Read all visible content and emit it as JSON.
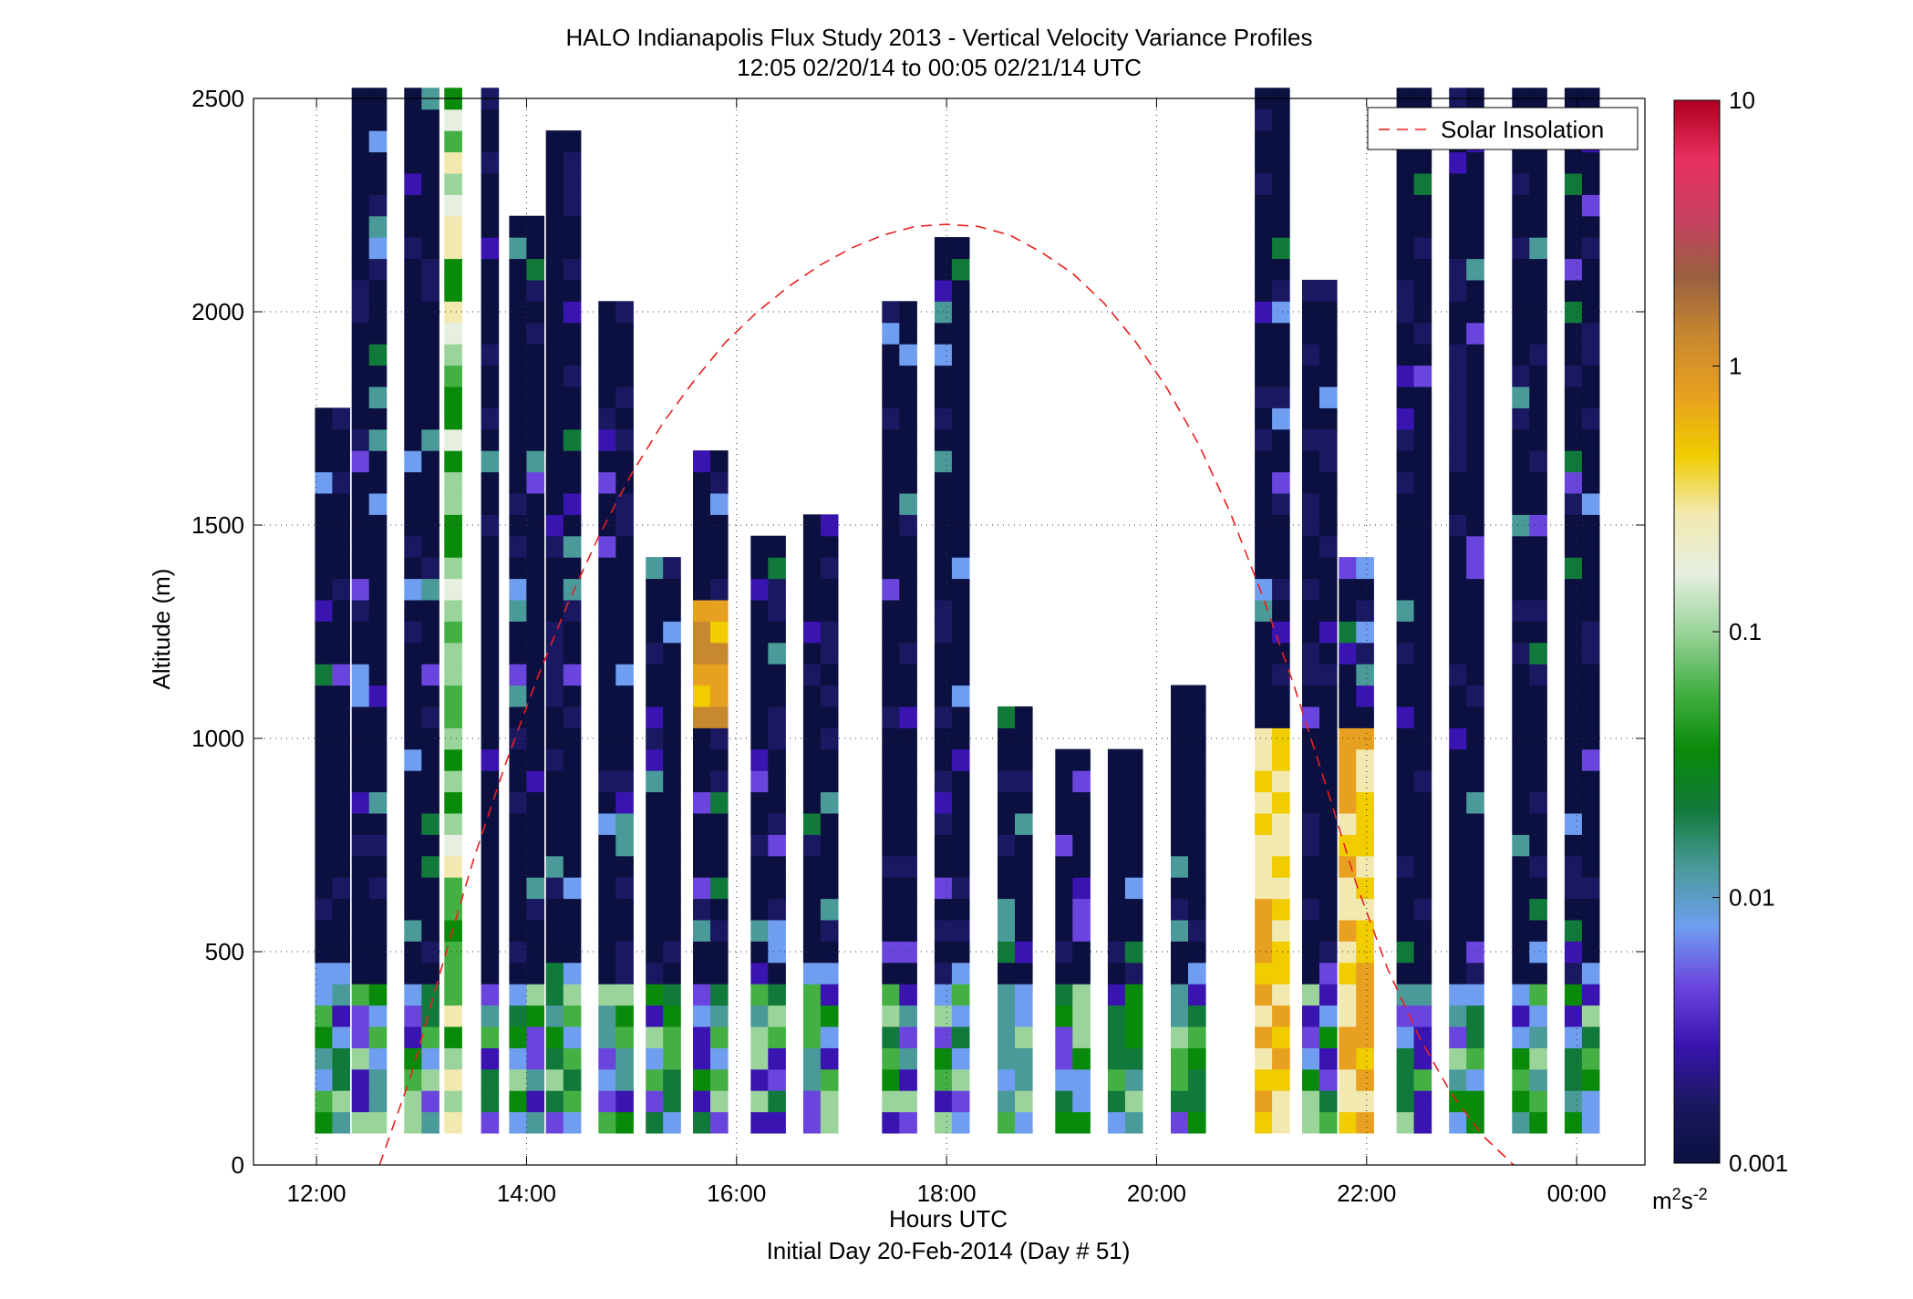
{
  "chart_data": {
    "type": "heatmap",
    "title": "HALO Indianapolis Flux Study 2013 - Vertical Velocity Variance Profiles",
    "subtitle": "12:05 02/20/14 to 00:05 02/21/14  UTC",
    "xlabel": "Hours UTC",
    "xlabel2": "Initial Day 20-Feb-2014 (Day # 51)",
    "ylabel": "Altitude (m)",
    "x_ticks": [
      {
        "value": 12,
        "label": "12:00"
      },
      {
        "value": 14,
        "label": "14:00"
      },
      {
        "value": 16,
        "label": "16:00"
      },
      {
        "value": 18,
        "label": "18:00"
      },
      {
        "value": 20,
        "label": "20:00"
      },
      {
        "value": 22,
        "label": "22:00"
      },
      {
        "value": 24,
        "label": "00:00"
      }
    ],
    "y_ticks": [
      {
        "value": 0,
        "label": "0"
      },
      {
        "value": 500,
        "label": "500"
      },
      {
        "value": 1000,
        "label": "1000"
      },
      {
        "value": 1500,
        "label": "1500"
      },
      {
        "value": 2000,
        "label": "2000"
      },
      {
        "value": 2500,
        "label": "2500"
      }
    ],
    "xlim": [
      11.4,
      24.65
    ],
    "ylim": [
      0,
      2500
    ],
    "grid": true,
    "legend": {
      "label": "Solar Insolation",
      "placement": "top-right"
    },
    "colorbar": {
      "scale": "log",
      "range": [
        0.001,
        10
      ],
      "ticks": [
        {
          "value": 10,
          "label": "10"
        },
        {
          "value": 1,
          "label": "1"
        },
        {
          "value": 0.1,
          "label": "0.1"
        },
        {
          "value": 0.01,
          "label": "0.01"
        },
        {
          "value": 0.001,
          "label": "0.001"
        }
      ],
      "unit_base": "m",
      "unit_exp1": "2",
      "unit_mid": "s",
      "unit_exp2": "-2",
      "colors": [
        "#0b1040",
        "#1a1860",
        "#3a14b0",
        "#6a45dd",
        "#6f9ef0",
        "#4a9a9a",
        "#117a3a",
        "#0a8a0a",
        "#44b044",
        "#9bd49b",
        "#e6efe0",
        "#f2e9b0",
        "#f0cc00",
        "#e8a020",
        "#c88830",
        "#9a6040",
        "#c64060",
        "#e83060",
        "#b00020"
      ]
    },
    "solar_insolation": {
      "x": [
        12.6,
        12.9,
        13.2,
        13.5,
        13.8,
        14.1,
        14.4,
        14.7,
        15.0,
        15.3,
        15.6,
        15.9,
        16.2,
        16.5,
        16.8,
        17.1,
        17.4,
        17.7,
        18.0,
        18.3,
        18.6,
        18.9,
        19.2,
        19.5,
        19.8,
        20.1,
        20.4,
        20.7,
        21.0,
        21.3,
        21.6,
        21.9,
        22.2,
        22.5,
        22.8,
        23.1,
        23.4
      ],
      "y": [
        0,
        210,
        470,
        720,
        940,
        1140,
        1320,
        1480,
        1620,
        1740,
        1840,
        1930,
        2000,
        2060,
        2110,
        2150,
        2180,
        2200,
        2205,
        2200,
        2180,
        2140,
        2090,
        2020,
        1930,
        1820,
        1690,
        1530,
        1340,
        1130,
        900,
        660,
        460,
        300,
        170,
        70,
        0
      ]
    },
    "variance_columns": [
      {
        "t": 12.15,
        "top": 1750
      },
      {
        "t": 12.5,
        "top": 2500
      },
      {
        "t": 13.0,
        "top": 2500
      },
      {
        "t": 13.3,
        "top": 2500
      },
      {
        "t": 13.65,
        "top": 2500
      },
      {
        "t": 14.0,
        "top": 2200
      },
      {
        "t": 14.35,
        "top": 2400
      },
      {
        "t": 14.85,
        "top": 2000
      },
      {
        "t": 15.3,
        "top": 1400
      },
      {
        "t": 15.75,
        "top": 1650
      },
      {
        "t": 16.3,
        "top": 1450
      },
      {
        "t": 16.8,
        "top": 1480
      },
      {
        "t": 17.55,
        "top": 2000
      },
      {
        "t": 18.05,
        "top": 2150
      },
      {
        "t": 18.65,
        "top": 1050
      },
      {
        "t": 19.2,
        "top": 950
      },
      {
        "t": 19.7,
        "top": 950
      },
      {
        "t": 20.3,
        "top": 1100
      },
      {
        "t": 21.1,
        "top": 2500
      },
      {
        "t": 21.55,
        "top": 2050
      },
      {
        "t": 21.9,
        "top": 1400
      },
      {
        "t": 22.45,
        "top": 2500
      },
      {
        "t": 22.95,
        "top": 2500
      },
      {
        "t": 23.55,
        "top": 2500
      },
      {
        "t": 24.05,
        "top": 2500
      }
    ]
  }
}
